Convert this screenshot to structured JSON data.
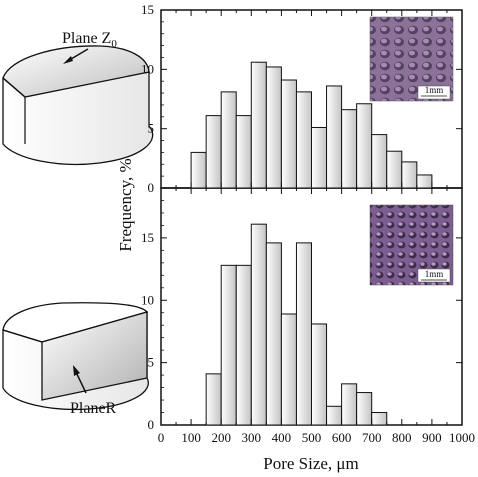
{
  "chart_data": [
    {
      "type": "bar",
      "panel": "top",
      "bin_width": 50,
      "x": [
        125,
        175,
        225,
        275,
        325,
        375,
        425,
        475,
        525,
        575,
        625,
        675,
        725,
        775,
        825,
        875
      ],
      "values": [
        3.0,
        6.1,
        8.1,
        6.1,
        10.6,
        10.2,
        9.1,
        8.1,
        5.1,
        8.6,
        6.6,
        7.1,
        4.5,
        3.1,
        2.2,
        1.1
      ],
      "xlim": [
        0,
        1000
      ],
      "ylim": [
        0,
        15
      ],
      "yticks": [
        0,
        5,
        10,
        15
      ],
      "inset_scale": "1mm",
      "diagram_label_main": "Plane Z",
      "diagram_label_sub": "0"
    },
    {
      "type": "bar",
      "panel": "bottom",
      "bin_width": 50,
      "x": [
        175,
        225,
        275,
        325,
        375,
        425,
        475,
        525,
        575,
        625,
        675,
        725
      ],
      "values": [
        4.1,
        12.8,
        12.8,
        16.1,
        14.6,
        8.9,
        14.6,
        8.1,
        1.5,
        3.3,
        2.6,
        1.0
      ],
      "xlim": [
        0,
        1000
      ],
      "ylim": [
        0,
        19
      ],
      "yticks": [
        0,
        5,
        10,
        15
      ],
      "inset_scale": "1mm",
      "diagram_label": "PlaneR"
    }
  ],
  "xticks": [
    "0",
    "100",
    "200",
    "300",
    "400",
    "500",
    "600",
    "700",
    "800",
    "900",
    "1000"
  ],
  "xlabel": "Pore Size, μm",
  "ylabel": "Frequency, %",
  "colors": {
    "bar_fill_light": "#f4f4f4",
    "bar_fill_dark": "#c6c6c6",
    "stroke": "#111111",
    "inset_base": "#8a6f9c"
  }
}
